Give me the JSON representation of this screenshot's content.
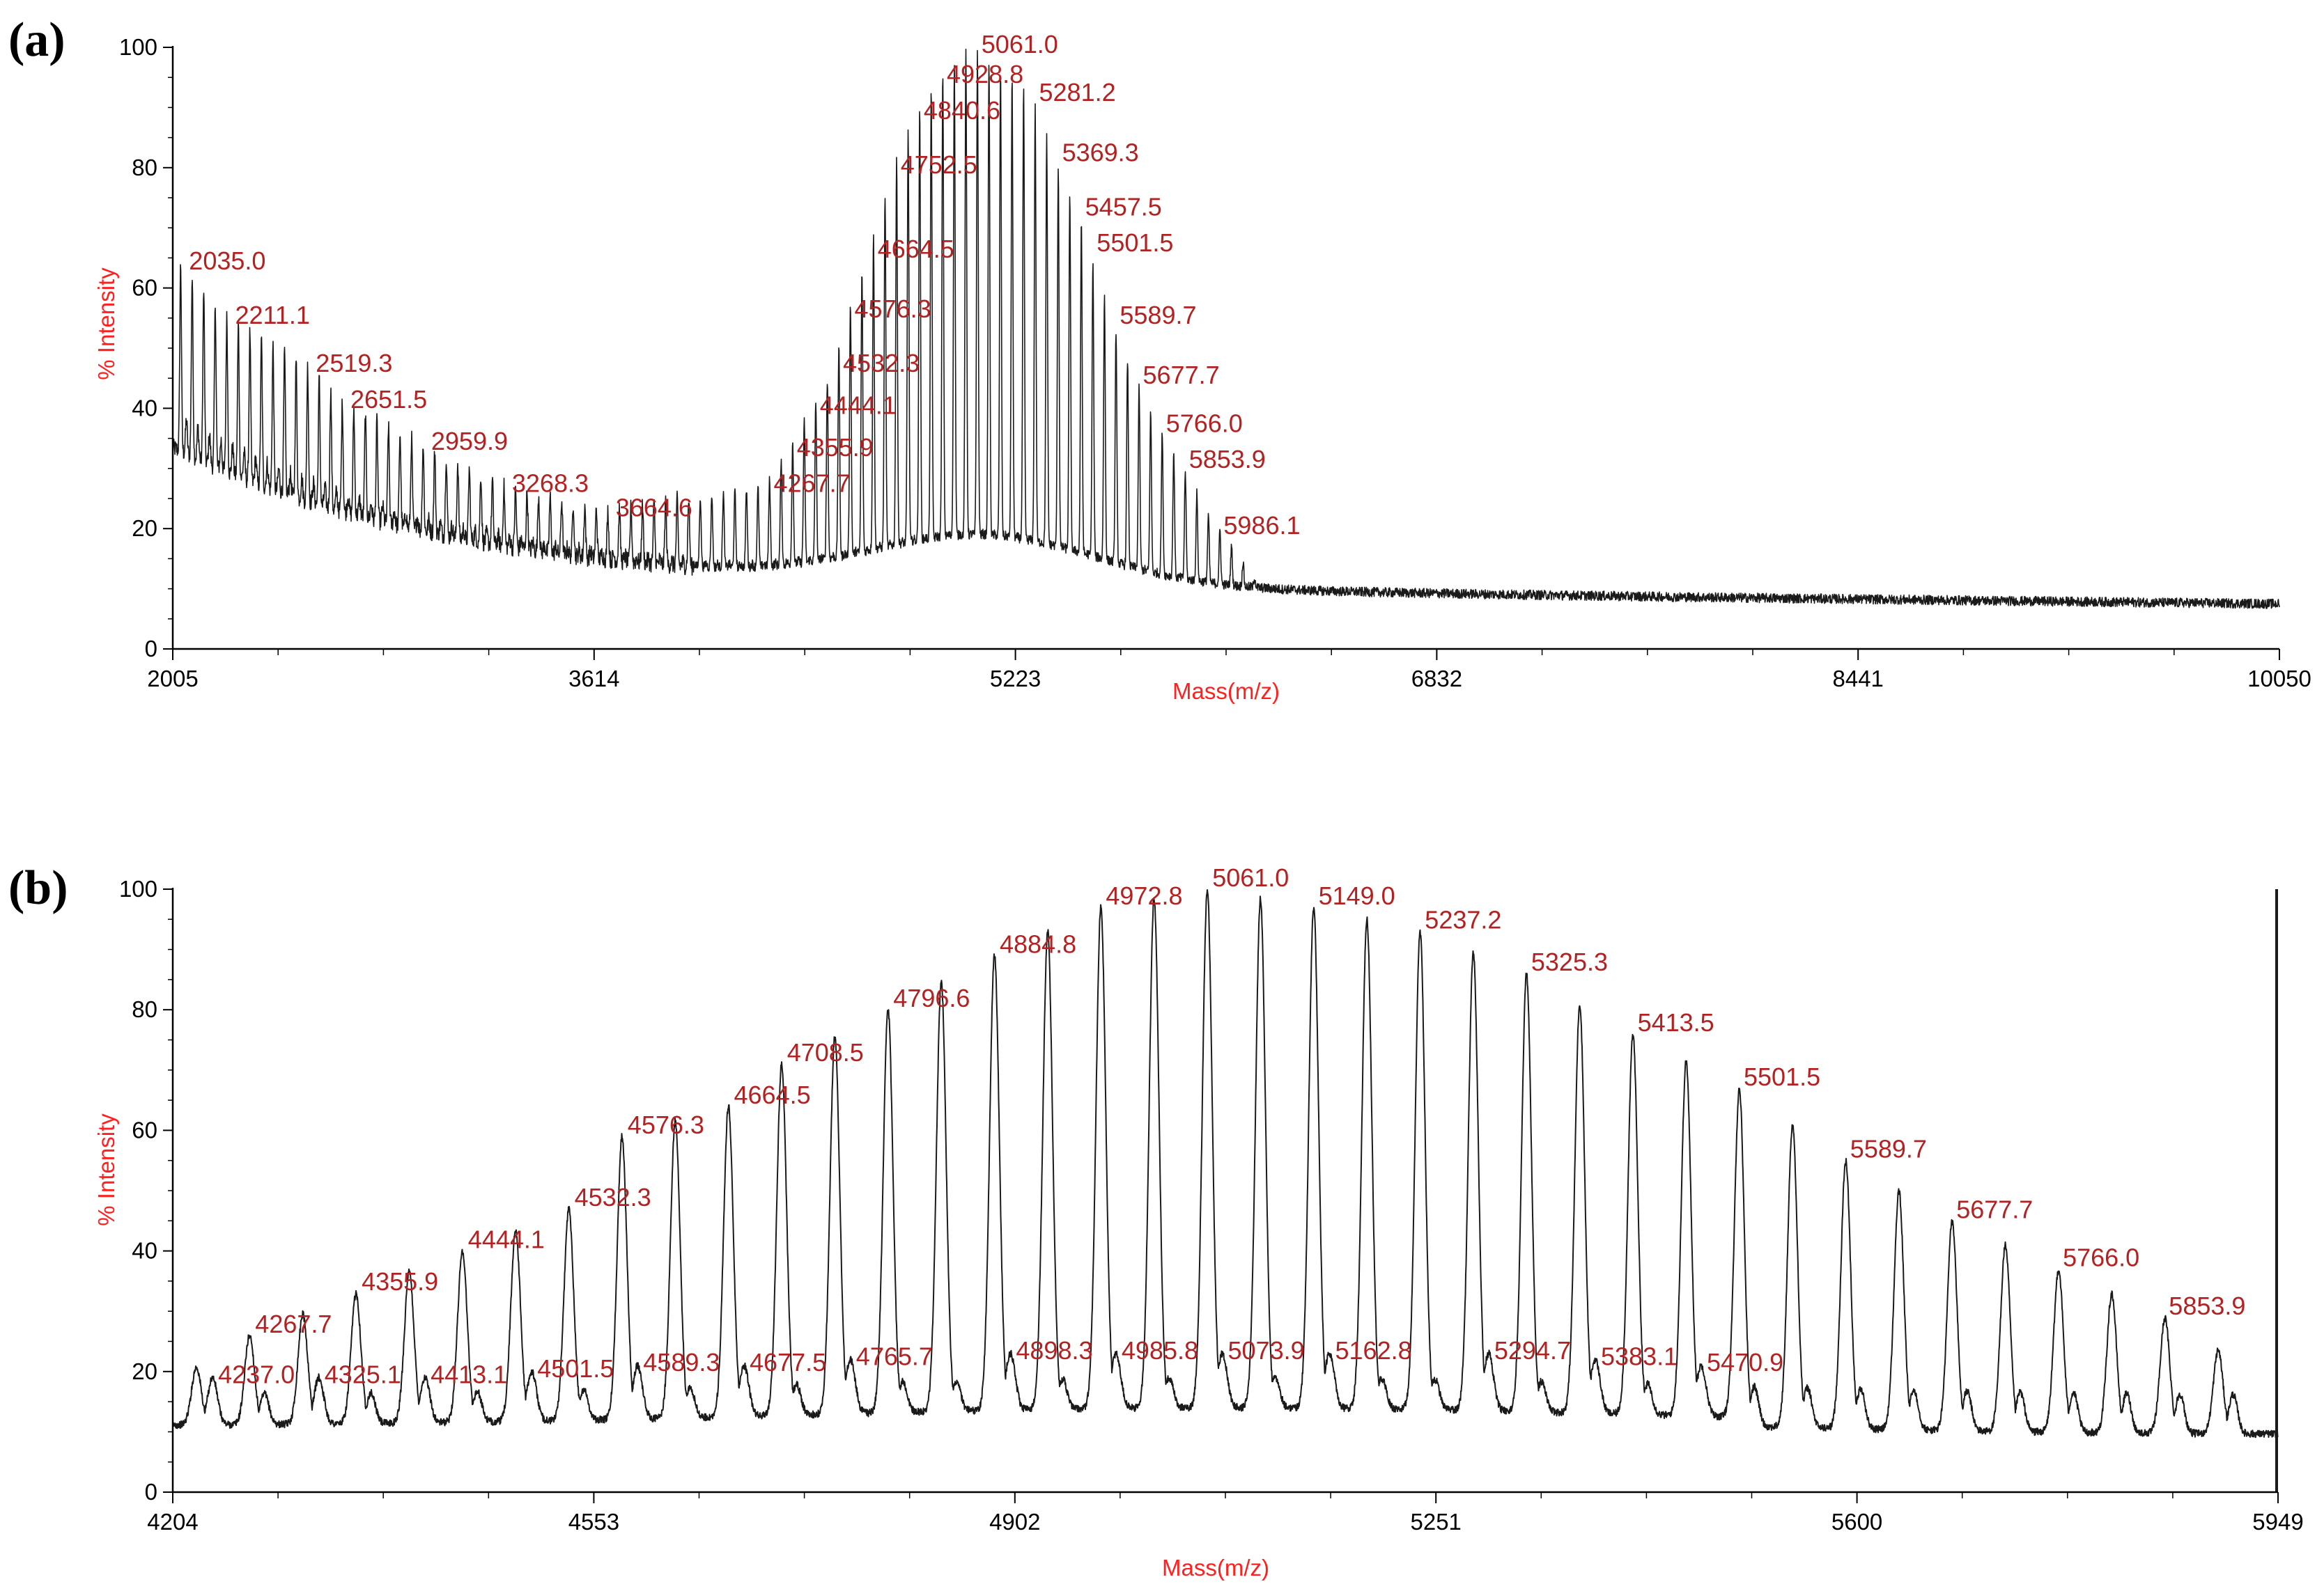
{
  "colors": {
    "axis": "#000000",
    "axis_title": "#ff2020",
    "peak_label": "#b22222",
    "trace": "#1a1a1a"
  },
  "chart_data": [
    {
      "panel": "(a)",
      "type": "line",
      "title": "",
      "xlabel": "Mass(m/z)",
      "ylabel": "% Intensity",
      "xlim": [
        2005,
        10050
      ],
      "ylim": [
        0,
        100
      ],
      "x_ticks": [
        2005,
        3614,
        5223,
        6832,
        8441,
        10050
      ],
      "y_ticks": [
        0,
        20,
        40,
        60,
        80,
        100
      ],
      "peak_spacing": 44.1,
      "peaks": [
        {
          "x": 2035.0,
          "y": 64,
          "label": "2035.0"
        },
        {
          "x": 2211.1,
          "y": 55,
          "label": "2211.1"
        },
        {
          "x": 2519.3,
          "y": 47,
          "label": "2519.3"
        },
        {
          "x": 2651.5,
          "y": 41,
          "label": "2651.5"
        },
        {
          "x": 2959.9,
          "y": 34,
          "label": "2959.9"
        },
        {
          "x": 3268.3,
          "y": 27,
          "label": "3268.3"
        },
        {
          "x": 3664.6,
          "y": 23,
          "label": "3664.6"
        },
        {
          "x": 4267.7,
          "y": 27,
          "label": "4267.7"
        },
        {
          "x": 4355.9,
          "y": 33,
          "label": "4355.9"
        },
        {
          "x": 4444.1,
          "y": 40,
          "label": "4444.1"
        },
        {
          "x": 4532.3,
          "y": 47,
          "label": "4532.3"
        },
        {
          "x": 4576.3,
          "y": 56,
          "label": "4576.3"
        },
        {
          "x": 4664.5,
          "y": 66,
          "label": "4664.5"
        },
        {
          "x": 4752.5,
          "y": 80,
          "label": "4752.5"
        },
        {
          "x": 4840.6,
          "y": 89,
          "label": "4840.6"
        },
        {
          "x": 4928.8,
          "y": 95,
          "label": "4928.8"
        },
        {
          "x": 5061.0,
          "y": 100,
          "label": "5061.0"
        },
        {
          "x": 5281.2,
          "y": 92,
          "label": "5281.2"
        },
        {
          "x": 5369.3,
          "y": 82,
          "label": "5369.3"
        },
        {
          "x": 5457.5,
          "y": 73,
          "label": "5457.5"
        },
        {
          "x": 5501.5,
          "y": 67,
          "label": "5501.5"
        },
        {
          "x": 5589.7,
          "y": 55,
          "label": "5589.7"
        },
        {
          "x": 5677.7,
          "y": 45,
          "label": "5677.7"
        },
        {
          "x": 5766.0,
          "y": 37,
          "label": "5766.0"
        },
        {
          "x": 5853.9,
          "y": 31,
          "label": "5853.9"
        },
        {
          "x": 5986.1,
          "y": 20,
          "label": "5986.1"
        }
      ]
    },
    {
      "panel": "(b)",
      "type": "line",
      "title": "",
      "xlabel": "Mass(m/z)",
      "ylabel": "% Intensity",
      "xlim": [
        4204,
        5949
      ],
      "ylim": [
        0,
        100
      ],
      "x_ticks": [
        4204,
        4553,
        4902,
        5251,
        5600,
        5949
      ],
      "y_ticks": [
        0,
        20,
        40,
        60,
        80,
        100
      ],
      "peak_spacing": 44.1,
      "peaks": [
        {
          "x": 4267.7,
          "y": 26,
          "label": "4267.7"
        },
        {
          "x": 4355.9,
          "y": 33,
          "label": "4355.9"
        },
        {
          "x": 4444.1,
          "y": 40,
          "label": "4444.1"
        },
        {
          "x": 4532.3,
          "y": 47,
          "label": "4532.3"
        },
        {
          "x": 4576.3,
          "y": 59,
          "label": "4576.3"
        },
        {
          "x": 4664.5,
          "y": 64,
          "label": "4664.5"
        },
        {
          "x": 4708.5,
          "y": 71,
          "label": "4708.5"
        },
        {
          "x": 4796.6,
          "y": 80,
          "label": "4796.6"
        },
        {
          "x": 4884.8,
          "y": 89,
          "label": "4884.8"
        },
        {
          "x": 4972.8,
          "y": 97,
          "label": "4972.8"
        },
        {
          "x": 5061.0,
          "y": 100,
          "label": "5061.0"
        },
        {
          "x": 5149.0,
          "y": 97,
          "label": "5149.0"
        },
        {
          "x": 5237.2,
          "y": 93,
          "label": "5237.2"
        },
        {
          "x": 5325.3,
          "y": 86,
          "label": "5325.3"
        },
        {
          "x": 5413.5,
          "y": 76,
          "label": "5413.5"
        },
        {
          "x": 5501.5,
          "y": 67,
          "label": "5501.5"
        },
        {
          "x": 5589.7,
          "y": 55,
          "label": "5589.7"
        },
        {
          "x": 5677.7,
          "y": 45,
          "label": "5677.7"
        },
        {
          "x": 5766.0,
          "y": 37,
          "label": "5766.0"
        },
        {
          "x": 5853.9,
          "y": 29,
          "label": "5853.9"
        }
      ],
      "minor_peaks": [
        {
          "x": 4237.0,
          "y": 19,
          "label": "4237.0"
        },
        {
          "x": 4325.1,
          "y": 19,
          "label": "4325.1"
        },
        {
          "x": 4413.1,
          "y": 19,
          "label": "4413.1"
        },
        {
          "x": 4501.5,
          "y": 20,
          "label": "4501.5"
        },
        {
          "x": 4589.3,
          "y": 21,
          "label": "4589.3"
        },
        {
          "x": 4677.5,
          "y": 21,
          "label": "4677.5"
        },
        {
          "x": 4765.7,
          "y": 22,
          "label": "4765.7"
        },
        {
          "x": 4898.3,
          "y": 23,
          "label": "4898.3"
        },
        {
          "x": 4985.8,
          "y": 23,
          "label": "4985.8"
        },
        {
          "x": 5073.9,
          "y": 23,
          "label": "5073.9"
        },
        {
          "x": 5162.8,
          "y": 23,
          "label": "5162.8"
        },
        {
          "x": 5294.7,
          "y": 23,
          "label": "5294.7"
        },
        {
          "x": 5383.1,
          "y": 22,
          "label": "5383.1"
        },
        {
          "x": 5470.9,
          "y": 21,
          "label": "5470.9"
        }
      ]
    }
  ]
}
